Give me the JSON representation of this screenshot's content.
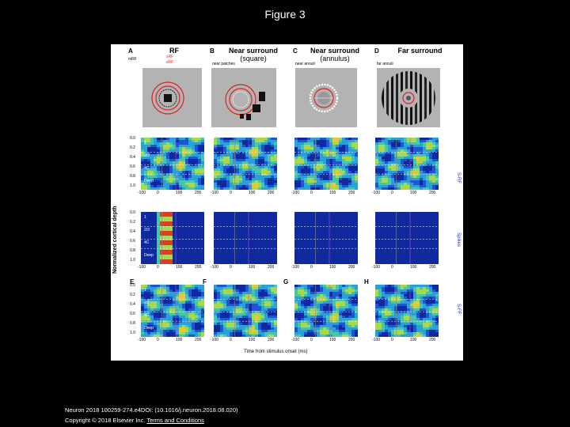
{
  "page": {
    "title": "Figure 3"
  },
  "panels_top": [
    {
      "letter": "A",
      "title": "RF",
      "sub": "",
      "legend": [
        "mRF",
        "sRF",
        "sRF"
      ]
    },
    {
      "letter": "B",
      "title": "Near surround",
      "sub": "(square)",
      "legend": [
        "near patches"
      ]
    },
    {
      "letter": "C",
      "title": "Near surround",
      "sub": "(annulus)",
      "legend": [
        "near annuli"
      ]
    },
    {
      "letter": "D",
      "title": "Far surround",
      "sub": "",
      "legend": [
        "far annuli"
      ]
    }
  ],
  "panels_bottom_letters": [
    "E",
    "F",
    "G",
    "H"
  ],
  "layers": [
    "1",
    "2/3",
    "4C",
    "Deep"
  ],
  "depth_ticks": [
    "0.0",
    "0.2",
    "0.4",
    "0.6",
    "0.8",
    "1.0"
  ],
  "time_ticks": [
    "-100",
    "0",
    "100",
    "200"
  ],
  "axis": {
    "ylabel": "Normalized cortical depth",
    "xlabel": "Time from stimulus onset (ms)"
  },
  "side_labels": [
    "S-RF",
    "Spikes",
    "S-FF"
  ],
  "colors": {
    "low": "#1a3ab8",
    "mid": "#3cc6c6",
    "high": "#e4d840",
    "peak": "#d43020"
  },
  "footer": {
    "citation": "Neuron 2018 100259-274.e4DOI: (10.1016/j.neuron.2018.08.020)",
    "copyright": "Copyright © 2018 Elsevier Inc.",
    "link": "Terms and Conditions"
  }
}
